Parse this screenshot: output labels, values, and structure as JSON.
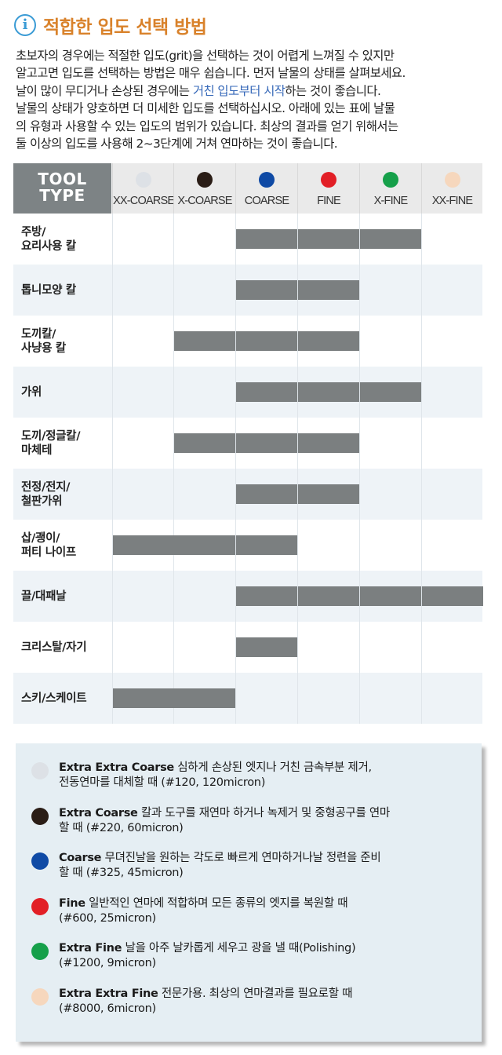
{
  "header": {
    "title": "적합한 입도 선택 방법",
    "icon": "info-icon"
  },
  "intro": {
    "line1": "초보자의 경우에는 적절한 입도(grit)을 선택하는 것이 어렵게 느껴질 수 있지만",
    "line2": "알고고면 입도를 선택하는 방법은 매우 쉽습니다. 먼저 날물의 상태를 살펴보세요.",
    "line3_pre": "날이 많이 무디거나 손상된 경우에는 ",
    "line3_hl": "거친 입도부터 시작",
    "line3_post": "하는 것이 좋습니다.",
    "line4": "날물의 상태가 양호하면 더 미세한 입도를 선택하십시오. 아래에 있는 표에 날물",
    "line5": "의 유형과 사용할 수 있는 입도의 범위가 있습니다. 최상의 결과를 얻기 위해서는",
    "line6": "둘 이상의 입도를 사용해 2~3단계에 거쳐 연마하는 것이 좋습니다."
  },
  "table": {
    "tool_type_line1": "TOOL",
    "tool_type_line2": "TYPE",
    "grits": [
      {
        "label": "XX-COARSE",
        "color": "#dde1e6"
      },
      {
        "label": "X-COARSE",
        "color": "#2a1d16"
      },
      {
        "label": "COARSE",
        "color": "#0f4aa5"
      },
      {
        "label": "FINE",
        "color": "#e21f26"
      },
      {
        "label": "X-FINE",
        "color": "#16a04a"
      },
      {
        "label": "XX-FINE",
        "color": "#f6d7bd"
      }
    ],
    "rows": [
      {
        "line1": "주방/",
        "line2": "요리사용 칼",
        "grits": [
          2,
          3,
          4
        ]
      },
      {
        "line1": "톱니모양 칼",
        "line2": "",
        "grits": [
          2,
          3
        ]
      },
      {
        "line1": "도끼칼/",
        "line2": "사냥용 칼",
        "grits": [
          1,
          2,
          3
        ]
      },
      {
        "line1": "가위",
        "line2": "",
        "grits": [
          2,
          3,
          4
        ]
      },
      {
        "line1": "도끼/정글칼/",
        "line2": "마체테",
        "grits": [
          1,
          2,
          3
        ]
      },
      {
        "line1": "전정/전지/",
        "line2": "철판가위",
        "grits": [
          2,
          3
        ]
      },
      {
        "line1": "삽/괭이/",
        "line2": "퍼티 나이프",
        "grits": [
          0,
          1,
          2
        ]
      },
      {
        "line1": "끌/대패날",
        "line2": "",
        "grits": [
          2,
          3,
          4,
          5
        ]
      },
      {
        "line1": "크리스탈/자기",
        "line2": "",
        "grits": [
          2
        ]
      },
      {
        "line1": "스키/스케이트",
        "line2": "",
        "grits": [
          0,
          1
        ]
      }
    ]
  },
  "legend": [
    {
      "name": "Extra Extra Coarse",
      "desc1": " 심하게 손상된 엣지나 거친 금속부분 제거,",
      "desc2": "전동연마를 대체할 때 (#120, 120micron)",
      "color": "#dde1e6"
    },
    {
      "name": "Extra Coarse",
      "desc1": " 칼과 도구를 재연마 하거나 녹제거 및 중형공구를 연마",
      "desc2": "할 때 (#220, 60micron)",
      "color": "#2a1d16"
    },
    {
      "name": "Coarse",
      "desc1": " 무뎌진날을 원하는 각도로 빠르게 연마하거나날 정련을 준비",
      "desc2": "할 때 (#325, 45micron)",
      "color": "#0f4aa5"
    },
    {
      "name": "Fine",
      "desc1": " 일반적인 연마에 적합하며 모든 종류의 엣지를 복원할 때",
      "desc2": "(#600, 25micron)",
      "color": "#e21f26"
    },
    {
      "name": "Extra Fine",
      "desc1": " 날을 아주 날카롭게 세우고 광을 낼 때(Polishing)",
      "desc2": "(#1200, 9micron)",
      "color": "#16a04a"
    },
    {
      "name": "Extra Extra Fine",
      "desc1": " 전문가용. 최상의 연마결과를 필요로할 때",
      "desc2": "(#8000, 6micron)",
      "color": "#f6d7bd"
    }
  ]
}
